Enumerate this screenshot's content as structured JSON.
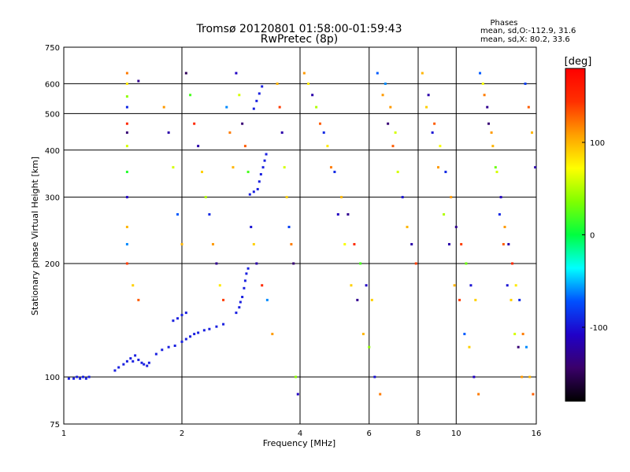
{
  "chart_data": {
    "type": "scatter",
    "title": "Tromsø 20120801 01:58:00-01:59:43",
    "subtitle": "RwPretec (8p)",
    "xlabel": "Frequency [MHz]",
    "ylabel": "Stationary phase Virtual Height [km]",
    "x_scale": "log",
    "y_scale": "log",
    "xlim": [
      1,
      16
    ],
    "ylim": [
      75,
      750
    ],
    "x_ticks": [
      1,
      2,
      4,
      6,
      8,
      10,
      16
    ],
    "x_tick_labels": [
      "1",
      "2",
      "4",
      "6",
      "8",
      "10",
      "16"
    ],
    "y_ticks": [
      75,
      100,
      200,
      300,
      400,
      500,
      600,
      750
    ],
    "y_tick_labels": [
      "75",
      "100",
      "200",
      "300",
      "400",
      "500",
      "600",
      "750"
    ],
    "grid": true,
    "stats_box": {
      "title": "Phases",
      "line1": "mean, sd,O:-112.9, 31.6",
      "line2": "mean, sd,X:  80.2, 33.6"
    },
    "colorbar": {
      "label": "[deg]",
      "range": [
        -180,
        180
      ],
      "ticks": [
        100,
        0,
        -100
      ],
      "tick_labels": [
        "100",
        "0",
        "-100"
      ],
      "colormap": [
        "#000000",
        "#3a006a",
        "#2000c8",
        "#0050ff",
        "#00ffff",
        "#00ff40",
        "#80ff00",
        "#ffff00",
        "#ffa000",
        "#ff3000",
        "#ff0000"
      ]
    },
    "trace_color": "#1a20e0",
    "trace_points": [
      [
        1.03,
        99
      ],
      [
        1.06,
        99
      ],
      [
        1.08,
        100
      ],
      [
        1.1,
        99
      ],
      [
        1.12,
        100
      ],
      [
        1.14,
        99
      ],
      [
        1.16,
        100
      ],
      [
        1.35,
        104
      ],
      [
        1.38,
        106
      ],
      [
        1.42,
        108
      ],
      [
        1.45,
        110
      ],
      [
        1.48,
        112
      ],
      [
        1.5,
        110
      ],
      [
        1.52,
        114
      ],
      [
        1.55,
        111
      ],
      [
        1.58,
        109
      ],
      [
        1.6,
        108
      ],
      [
        1.63,
        107
      ],
      [
        1.65,
        109
      ],
      [
        1.72,
        115
      ],
      [
        1.78,
        118
      ],
      [
        1.85,
        120
      ],
      [
        1.92,
        121
      ],
      [
        2.0,
        124
      ],
      [
        2.05,
        126
      ],
      [
        2.1,
        128
      ],
      [
        2.15,
        130
      ],
      [
        2.2,
        131
      ],
      [
        2.28,
        133
      ],
      [
        2.35,
        134
      ],
      [
        2.45,
        136
      ],
      [
        2.55,
        138
      ],
      [
        2.0,
        146
      ],
      [
        2.05,
        148
      ],
      [
        1.95,
        143
      ],
      [
        1.9,
        141
      ],
      [
        2.75,
        148
      ],
      [
        2.8,
        153
      ],
      [
        2.82,
        158
      ],
      [
        2.85,
        163
      ],
      [
        2.88,
        172
      ],
      [
        2.9,
        180
      ],
      [
        2.92,
        188
      ],
      [
        2.95,
        194
      ],
      [
        2.98,
        305
      ],
      [
        3.05,
        310
      ],
      [
        3.12,
        315
      ],
      [
        3.15,
        330
      ],
      [
        3.18,
        345
      ],
      [
        3.22,
        360
      ],
      [
        3.25,
        375
      ],
      [
        3.28,
        390
      ],
      [
        3.05,
        515
      ],
      [
        3.1,
        540
      ],
      [
        3.15,
        565
      ],
      [
        3.2,
        590
      ]
    ],
    "scatter_points": [
      [
        1.45,
        640,
        120
      ],
      [
        1.45,
        600,
        80
      ],
      [
        1.45,
        555,
        40
      ],
      [
        1.45,
        520,
        -90
      ],
      [
        1.45,
        470,
        150
      ],
      [
        1.45,
        445,
        -140
      ],
      [
        1.45,
        410,
        60
      ],
      [
        1.45,
        350,
        10
      ],
      [
        1.45,
        300,
        -110
      ],
      [
        1.45,
        250,
        100
      ],
      [
        1.45,
        225,
        -60
      ],
      [
        1.45,
        200,
        140
      ],
      [
        1.55,
        610,
        -130
      ],
      [
        1.5,
        175,
        90
      ],
      [
        1.55,
        160,
        130
      ],
      [
        1.8,
        520,
        110
      ],
      [
        1.85,
        445,
        -120
      ],
      [
        1.9,
        360,
        60
      ],
      [
        1.95,
        270,
        -70
      ],
      [
        2.0,
        225,
        100
      ],
      [
        2.05,
        640,
        -150
      ],
      [
        2.1,
        560,
        20
      ],
      [
        2.15,
        470,
        150
      ],
      [
        2.2,
        410,
        -120
      ],
      [
        2.25,
        350,
        90
      ],
      [
        2.3,
        300,
        50
      ],
      [
        2.35,
        270,
        -90
      ],
      [
        2.4,
        225,
        110
      ],
      [
        2.45,
        200,
        -130
      ],
      [
        2.5,
        175,
        80
      ],
      [
        2.55,
        160,
        140
      ],
      [
        2.6,
        520,
        -60
      ],
      [
        2.65,
        445,
        120
      ],
      [
        2.7,
        360,
        100
      ],
      [
        2.75,
        640,
        -110
      ],
      [
        2.8,
        560,
        60
      ],
      [
        2.85,
        470,
        -140
      ],
      [
        2.9,
        410,
        130
      ],
      [
        2.95,
        350,
        20
      ],
      [
        3.0,
        250,
        -100
      ],
      [
        3.05,
        225,
        90
      ],
      [
        3.1,
        200,
        -120
      ],
      [
        3.2,
        175,
        150
      ],
      [
        3.3,
        160,
        -60
      ],
      [
        3.4,
        130,
        110
      ],
      [
        3.5,
        600,
        100
      ],
      [
        3.55,
        520,
        140
      ],
      [
        3.6,
        445,
        -120
      ],
      [
        3.65,
        360,
        60
      ],
      [
        3.7,
        300,
        90
      ],
      [
        3.75,
        250,
        -80
      ],
      [
        3.8,
        225,
        120
      ],
      [
        3.85,
        200,
        -140
      ],
      [
        3.9,
        100,
        40
      ],
      [
        3.95,
        90,
        -110
      ],
      [
        4.1,
        640,
        110
      ],
      [
        4.3,
        560,
        -120
      ],
      [
        4.5,
        470,
        130
      ],
      [
        4.7,
        410,
        80
      ],
      [
        4.9,
        350,
        -90
      ],
      [
        5.1,
        300,
        100
      ],
      [
        5.3,
        270,
        -130
      ],
      [
        5.5,
        225,
        150
      ],
      [
        5.7,
        200,
        20
      ],
      [
        5.9,
        175,
        -110
      ],
      [
        6.1,
        160,
        90
      ],
      [
        6.3,
        640,
        -70
      ],
      [
        6.5,
        560,
        110
      ],
      [
        6.7,
        470,
        -140
      ],
      [
        6.9,
        410,
        130
      ],
      [
        7.1,
        350,
        60
      ],
      [
        7.3,
        300,
        -100
      ],
      [
        7.5,
        250,
        100
      ],
      [
        7.7,
        225,
        -120
      ],
      [
        7.9,
        200,
        140
      ],
      [
        4.2,
        600,
        80
      ],
      [
        4.4,
        520,
        50
      ],
      [
        4.6,
        445,
        -90
      ],
      [
        4.8,
        360,
        120
      ],
      [
        5.0,
        270,
        -110
      ],
      [
        5.2,
        225,
        70
      ],
      [
        5.4,
        175,
        90
      ],
      [
        5.6,
        160,
        -130
      ],
      [
        5.8,
        130,
        100
      ],
      [
        6.0,
        120,
        40
      ],
      [
        6.2,
        100,
        -100
      ],
      [
        6.4,
        90,
        120
      ],
      [
        6.6,
        600,
        -60
      ],
      [
        6.8,
        520,
        110
      ],
      [
        7.0,
        445,
        60
      ],
      [
        8.2,
        640,
        100
      ],
      [
        8.5,
        560,
        -120
      ],
      [
        8.8,
        470,
        130
      ],
      [
        9.1,
        410,
        70
      ],
      [
        9.4,
        350,
        -90
      ],
      [
        9.7,
        300,
        110
      ],
      [
        10.0,
        250,
        -130
      ],
      [
        10.3,
        225,
        140
      ],
      [
        10.6,
        200,
        30
      ],
      [
        10.9,
        175,
        -100
      ],
      [
        11.2,
        160,
        90
      ],
      [
        11.5,
        640,
        -70
      ],
      [
        11.8,
        560,
        120
      ],
      [
        12.1,
        470,
        -140
      ],
      [
        12.4,
        410,
        100
      ],
      [
        12.7,
        350,
        60
      ],
      [
        13.0,
        300,
        -110
      ],
      [
        13.3,
        250,
        110
      ],
      [
        13.6,
        225,
        -120
      ],
      [
        13.9,
        200,
        150
      ],
      [
        14.2,
        175,
        80
      ],
      [
        14.5,
        160,
        -90
      ],
      [
        14.8,
        130,
        120
      ],
      [
        15.1,
        120,
        -60
      ],
      [
        15.4,
        100,
        100
      ],
      [
        15.7,
        90,
        130
      ],
      [
        8.4,
        520,
        90
      ],
      [
        8.7,
        445,
        -100
      ],
      [
        9.0,
        360,
        110
      ],
      [
        9.3,
        270,
        50
      ],
      [
        9.6,
        225,
        -120
      ],
      [
        9.9,
        175,
        100
      ],
      [
        10.2,
        160,
        140
      ],
      [
        10.5,
        130,
        -70
      ],
      [
        10.8,
        120,
        90
      ],
      [
        11.1,
        100,
        -110
      ],
      [
        11.4,
        90,
        120
      ],
      [
        11.7,
        600,
        70
      ],
      [
        12.0,
        520,
        -130
      ],
      [
        12.3,
        445,
        110
      ],
      [
        12.6,
        360,
        30
      ],
      [
        12.9,
        270,
        -90
      ],
      [
        13.2,
        225,
        130
      ],
      [
        13.5,
        175,
        -100
      ],
      [
        13.8,
        160,
        90
      ],
      [
        14.1,
        130,
        60
      ],
      [
        14.4,
        120,
        -140
      ],
      [
        14.7,
        100,
        110
      ],
      [
        15.0,
        600,
        -80
      ],
      [
        15.3,
        520,
        130
      ],
      [
        15.6,
        445,
        100
      ],
      [
        15.9,
        360,
        -120
      ]
    ]
  }
}
